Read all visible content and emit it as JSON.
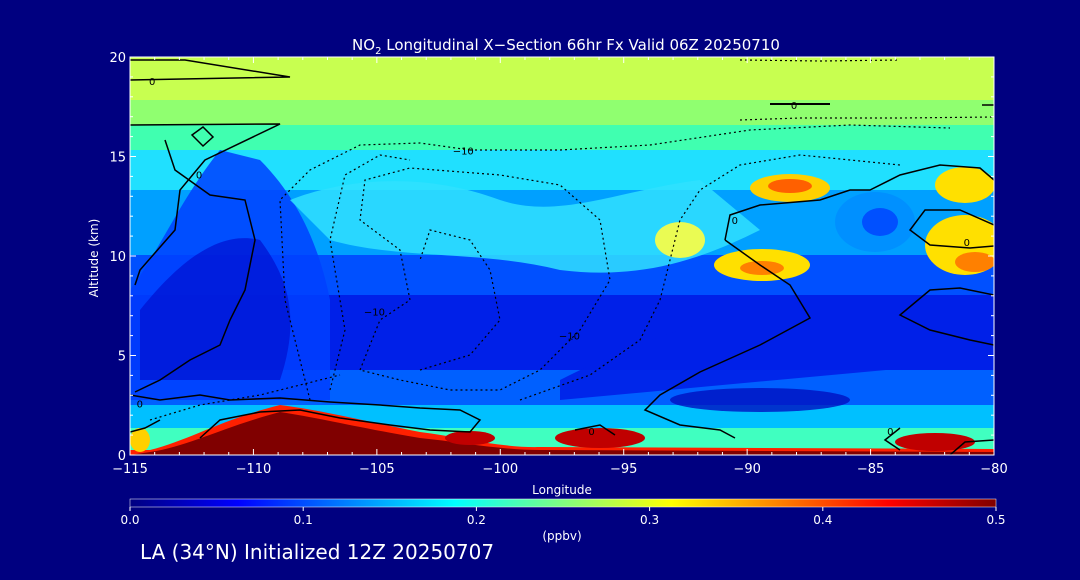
{
  "chart_data": {
    "type": "heatmap",
    "title_prefix": "NO",
    "title_subscript": "2",
    "title_suffix": " Longitudinal X−Section 66hr  Fx Valid 06Z 20250710",
    "xlabel": "Longitude",
    "ylabel": "Altitude (km)",
    "xlim": [
      -115,
      -80
    ],
    "ylim": [
      0,
      20
    ],
    "x_ticks": [
      -115,
      -110,
      -105,
      -100,
      -95,
      -90,
      -85,
      -80
    ],
    "x_tick_labels": [
      "−115",
      "−110",
      "−105",
      "−100",
      "−95",
      "−90",
      "−85",
      "−80"
    ],
    "y_ticks": [
      0,
      5,
      10,
      15,
      20
    ],
    "y_tick_labels": [
      "0",
      "5",
      "10",
      "15",
      "20"
    ],
    "colorbar": {
      "min": 0.0,
      "max": 0.5,
      "ticks": [
        0.0,
        0.1,
        0.2,
        0.3,
        0.4,
        0.5
      ],
      "tick_labels": [
        "0.0",
        "0.1",
        "0.2",
        "0.3",
        "0.4",
        "0.5"
      ],
      "units": "(ppbv)",
      "colormap": [
        "#000080",
        "#0000ff",
        "#0080ff",
        "#00ffff",
        "#80ff80",
        "#ffff00",
        "#ff8000",
        "#ff0000",
        "#800000"
      ]
    },
    "contour_labels": [
      {
        "text": "0",
        "x": -114.1,
        "y": 18.8
      },
      {
        "text": "0",
        "x": -88.1,
        "y": 17.6
      },
      {
        "text": "−10",
        "x": -101.5,
        "y": 15.3
      },
      {
        "text": "0",
        "x": -112.2,
        "y": 14.1
      },
      {
        "text": "0",
        "x": -90.5,
        "y": 11.8
      },
      {
        "text": "0",
        "x": -81.1,
        "y": 10.7
      },
      {
        "text": "−10",
        "x": -105.1,
        "y": 7.2
      },
      {
        "text": "−10",
        "x": -97.2,
        "y": 6.0
      },
      {
        "text": "0",
        "x": -114.6,
        "y": 2.6
      },
      {
        "text": "0",
        "x": -96.3,
        "y": 1.2
      },
      {
        "text": "0",
        "x": -84.2,
        "y": 1.2
      }
    ]
  },
  "footer": {
    "caption": "LA (34°N) Initialized 12Z 20250707"
  }
}
